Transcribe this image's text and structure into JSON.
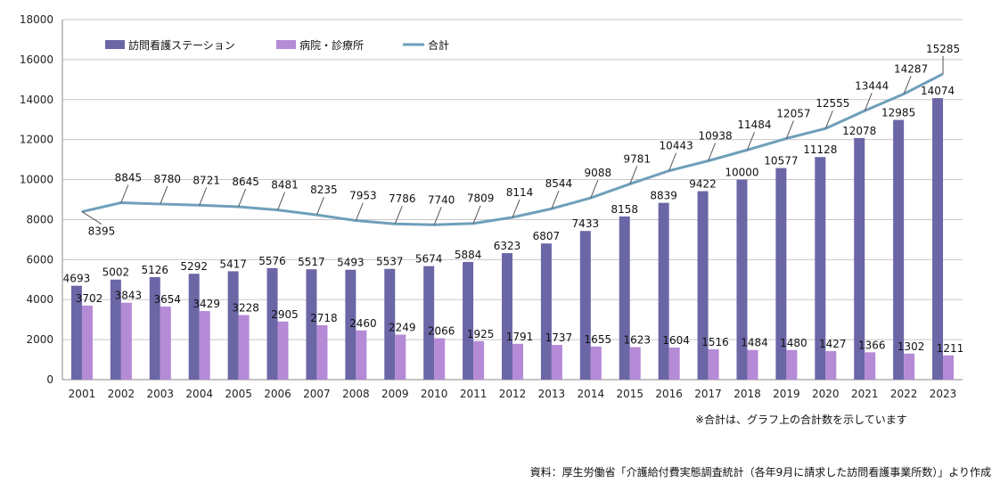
{
  "chart_data": {
    "type": "bar",
    "categories": [
      "2001",
      "2002",
      "2003",
      "2004",
      "2005",
      "2006",
      "2007",
      "2008",
      "2009",
      "2010",
      "2011",
      "2012",
      "2013",
      "2014",
      "2015",
      "2016",
      "2017",
      "2018",
      "2019",
      "2020",
      "2021",
      "2022",
      "2023"
    ],
    "series": [
      {
        "name": "訪問看護ステーション",
        "type": "bar",
        "color": "#6b66a6",
        "values": [
          4693,
          5002,
          5126,
          5292,
          5417,
          5576,
          5517,
          5493,
          5537,
          5674,
          5884,
          6323,
          6807,
          7433,
          8158,
          8839,
          9422,
          10000,
          10577,
          11128,
          12078,
          12985,
          14074
        ]
      },
      {
        "name": "病院・診療所",
        "type": "bar",
        "color": "#b58ad6",
        "values": [
          3702,
          3843,
          3654,
          3429,
          3228,
          2905,
          2718,
          2460,
          2249,
          2066,
          1925,
          1791,
          1737,
          1655,
          1623,
          1604,
          1516,
          1484,
          1480,
          1427,
          1366,
          1302,
          1211
        ]
      },
      {
        "name": "合計",
        "type": "line",
        "color": "#6f9fba",
        "values": [
          8395,
          8845,
          8780,
          8721,
          8645,
          8481,
          8235,
          7953,
          7786,
          7740,
          7809,
          8114,
          8544,
          9088,
          9781,
          10443,
          10938,
          11484,
          12057,
          12555,
          13444,
          14287,
          15285
        ]
      }
    ],
    "y_ticks": [
      "0",
      "2000",
      "4000",
      "6000",
      "8000",
      "10000",
      "12000",
      "14000",
      "16000",
      "18000"
    ],
    "ylim": [
      0,
      18000
    ],
    "grid": true,
    "legend_position": "top-left"
  },
  "notes": {
    "total_note": "※合計は、グラフ上の合計数を示しています",
    "source": "資料：厚生労働省「介護給付費実態調査統計（各年9月に請求した訪問看護事業所数）」より作成"
  }
}
